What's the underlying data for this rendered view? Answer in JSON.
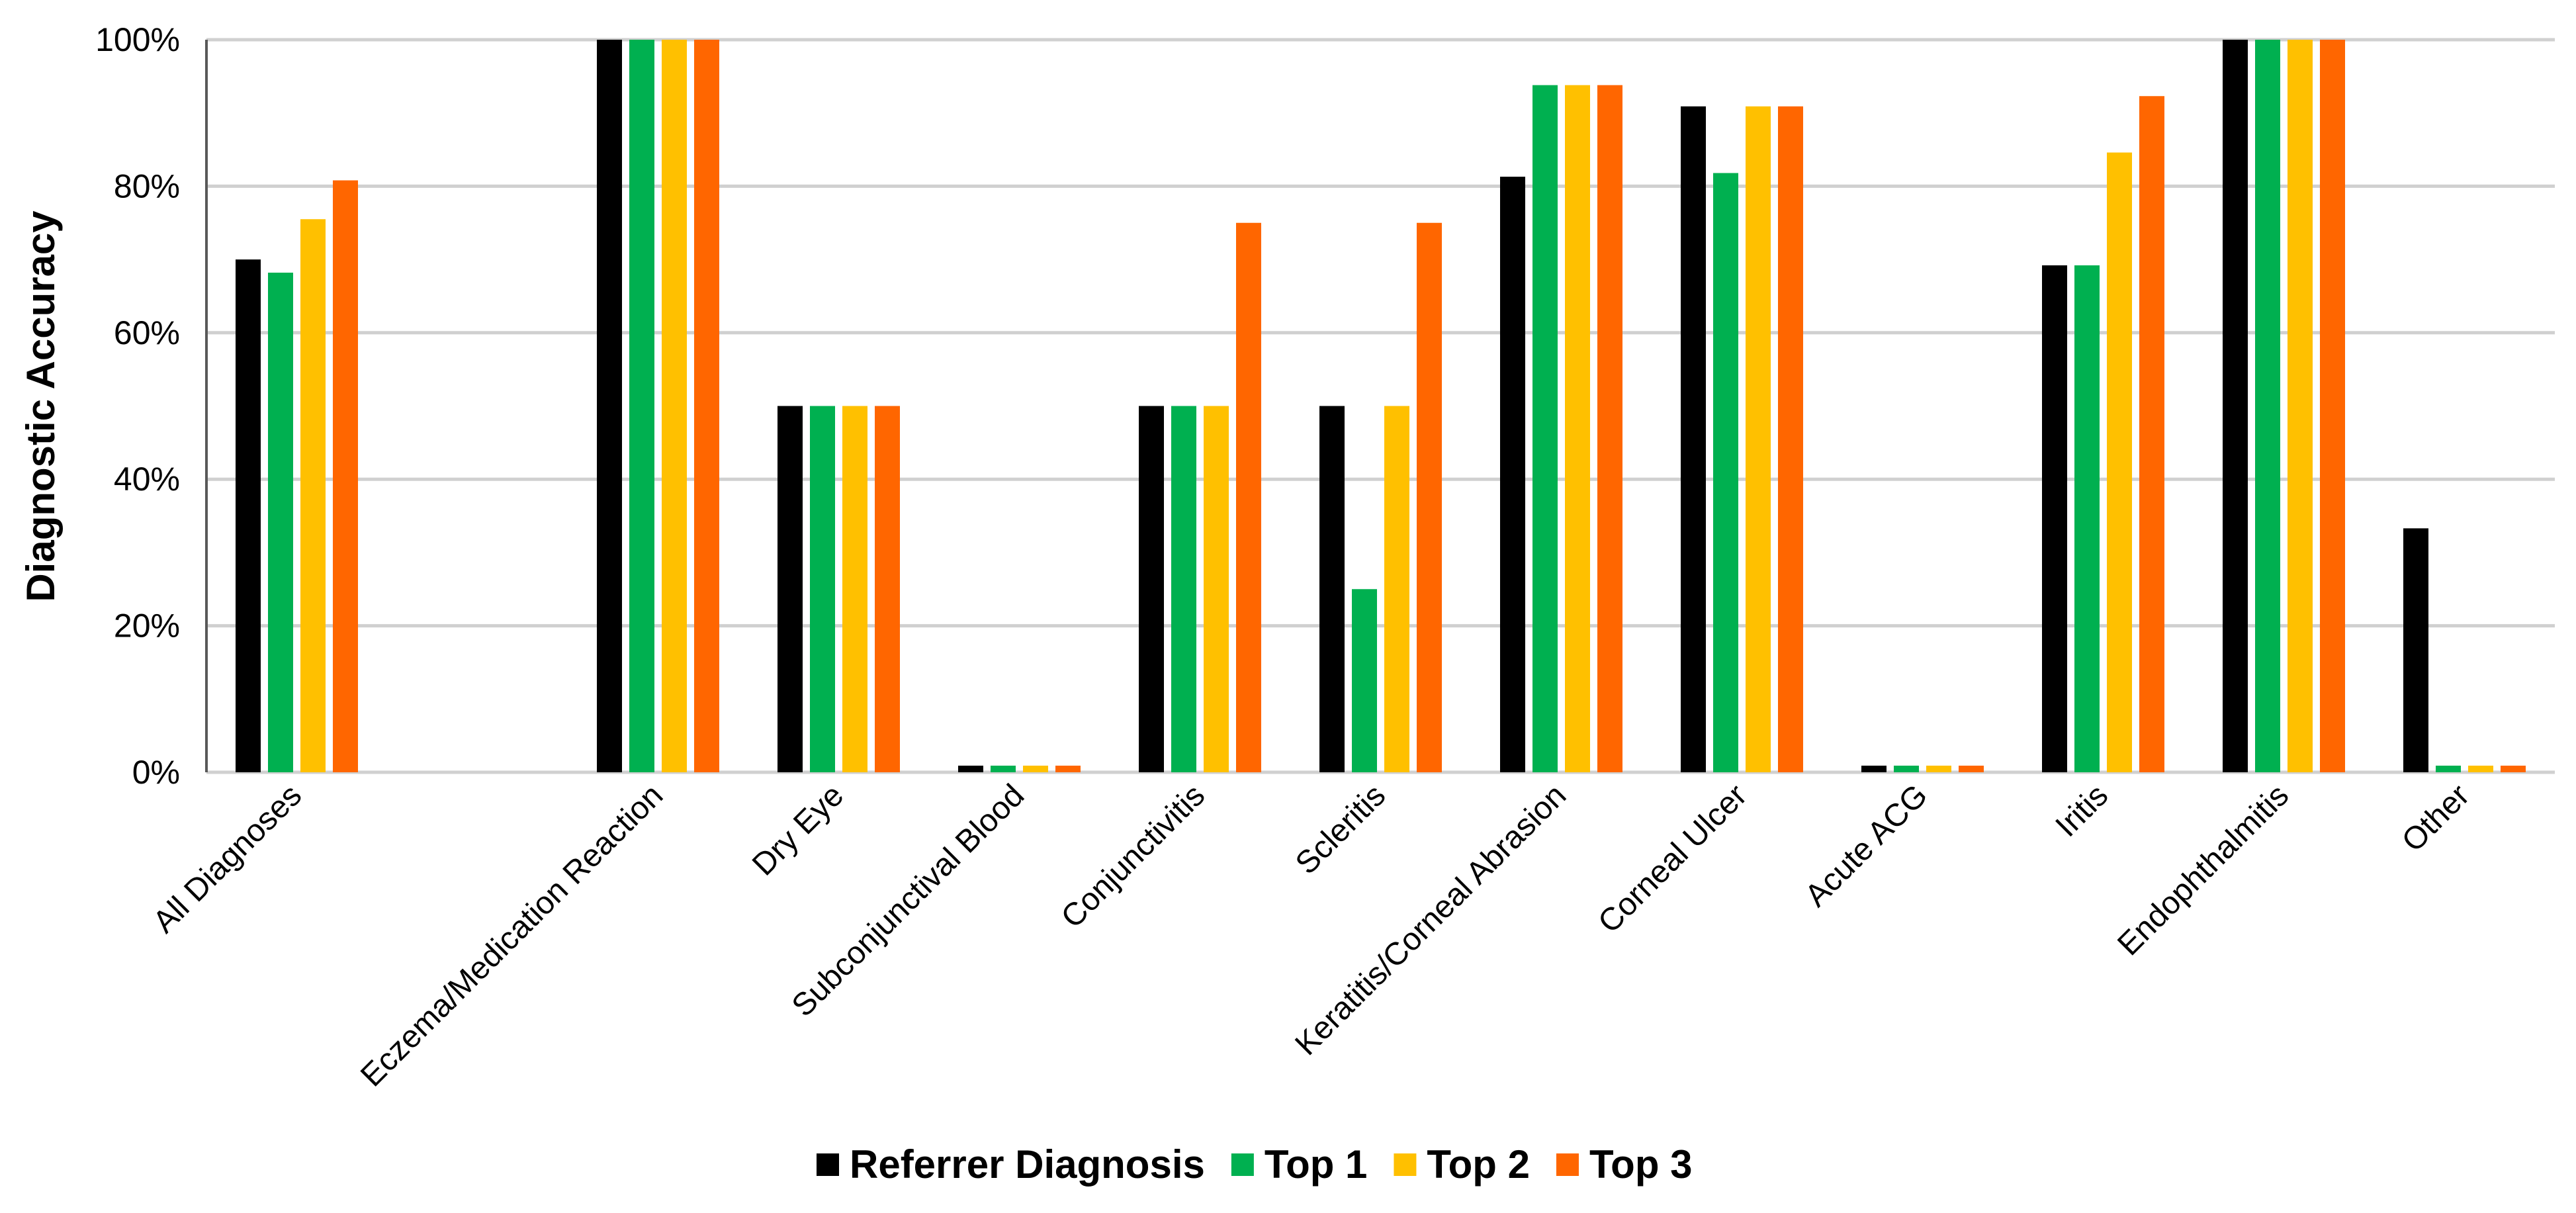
{
  "chart_data": {
    "type": "bar",
    "title": "",
    "xlabel": "",
    "ylabel": "Diagnostic Accuracy",
    "ylim": [
      0,
      100
    ],
    "yticks": [
      "0%",
      "20%",
      "40%",
      "60%",
      "80%",
      "100%"
    ],
    "grid": true,
    "legend_position": "bottom",
    "categories": [
      "All Diagnoses",
      "",
      "Eczema/Medication Reaction",
      "Dry Eye",
      "Subconjunctival Blood",
      "Conjunctivitis",
      "Scleritis",
      "Keratitis/Corneal Abrasion",
      "Corneal Ulcer",
      "Acute ACG",
      "Iritis",
      "Endophthalmitis",
      "Other"
    ],
    "series": [
      {
        "name": "Referrer Diagnosis",
        "color": "#000000",
        "values": [
          70,
          null,
          100,
          50,
          0,
          50,
          50,
          81.3,
          90.9,
          0,
          69.2,
          100,
          33.3
        ]
      },
      {
        "name": "Top 1",
        "color": "#00b050",
        "values": [
          68.2,
          null,
          100,
          50,
          0,
          50,
          25,
          93.8,
          81.8,
          0,
          69.2,
          100,
          0
        ]
      },
      {
        "name": "Top 2",
        "color": "#ffc000",
        "values": [
          75.5,
          null,
          100,
          50,
          0,
          50,
          50,
          93.8,
          90.9,
          0,
          84.6,
          100,
          0
        ]
      },
      {
        "name": "Top 3",
        "color": "#ff6600",
        "values": [
          80.8,
          null,
          100,
          50,
          0,
          75,
          75,
          93.8,
          90.9,
          0,
          92.3,
          100,
          0
        ]
      }
    ]
  }
}
